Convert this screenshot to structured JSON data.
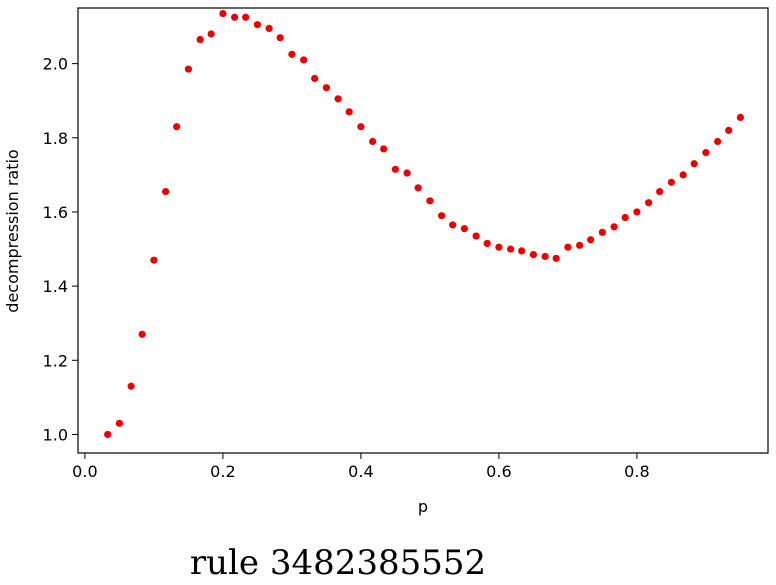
{
  "chart_data": {
    "type": "scatter",
    "xlabel": "p",
    "ylabel": "decompression ratio",
    "caption": "rule 3482385552",
    "xlim": [
      -0.01,
      0.99
    ],
    "ylim": [
      0.95,
      2.15
    ],
    "xticks": [
      0.0,
      0.2,
      0.4,
      0.6,
      0.8
    ],
    "xtick_labels": [
      "0.0",
      "0.2",
      "0.4",
      "0.6",
      "0.8"
    ],
    "yticks": [
      1.0,
      1.2,
      1.4,
      1.6,
      1.8,
      2.0
    ],
    "ytick_labels": [
      "1.0",
      "1.2",
      "1.4",
      "1.6",
      "1.8",
      "2.0"
    ],
    "grid": false,
    "marker_color": "#ee0000",
    "series": [
      {
        "x": [
          0.033,
          0.05,
          0.067,
          0.083,
          0.1,
          0.117,
          0.133,
          0.15,
          0.167,
          0.183,
          0.2,
          0.217,
          0.233,
          0.25,
          0.267,
          0.283,
          0.3,
          0.317,
          0.333,
          0.35,
          0.367,
          0.383,
          0.4,
          0.417,
          0.433,
          0.45,
          0.467,
          0.483,
          0.5,
          0.517,
          0.533,
          0.55,
          0.567,
          0.583,
          0.6,
          0.617,
          0.633,
          0.65,
          0.667,
          0.683,
          0.7,
          0.717,
          0.733,
          0.75,
          0.767,
          0.783,
          0.8,
          0.817,
          0.833,
          0.85,
          0.867,
          0.883,
          0.9,
          0.917,
          0.933,
          0.95
        ],
        "y": [
          1.0,
          1.03,
          1.13,
          1.27,
          1.47,
          1.655,
          1.83,
          1.985,
          2.065,
          2.08,
          2.135,
          2.125,
          2.125,
          2.105,
          2.095,
          2.07,
          2.025,
          2.01,
          1.96,
          1.935,
          1.905,
          1.87,
          1.83,
          1.79,
          1.77,
          1.715,
          1.705,
          1.665,
          1.63,
          1.59,
          1.565,
          1.555,
          1.535,
          1.515,
          1.505,
          1.5,
          1.495,
          1.485,
          1.48,
          1.475,
          1.505,
          1.51,
          1.525,
          1.545,
          1.56,
          1.585,
          1.6,
          1.625,
          1.655,
          1.68,
          1.7,
          1.73,
          1.76,
          1.79,
          1.82,
          1.855
        ]
      }
    ]
  }
}
